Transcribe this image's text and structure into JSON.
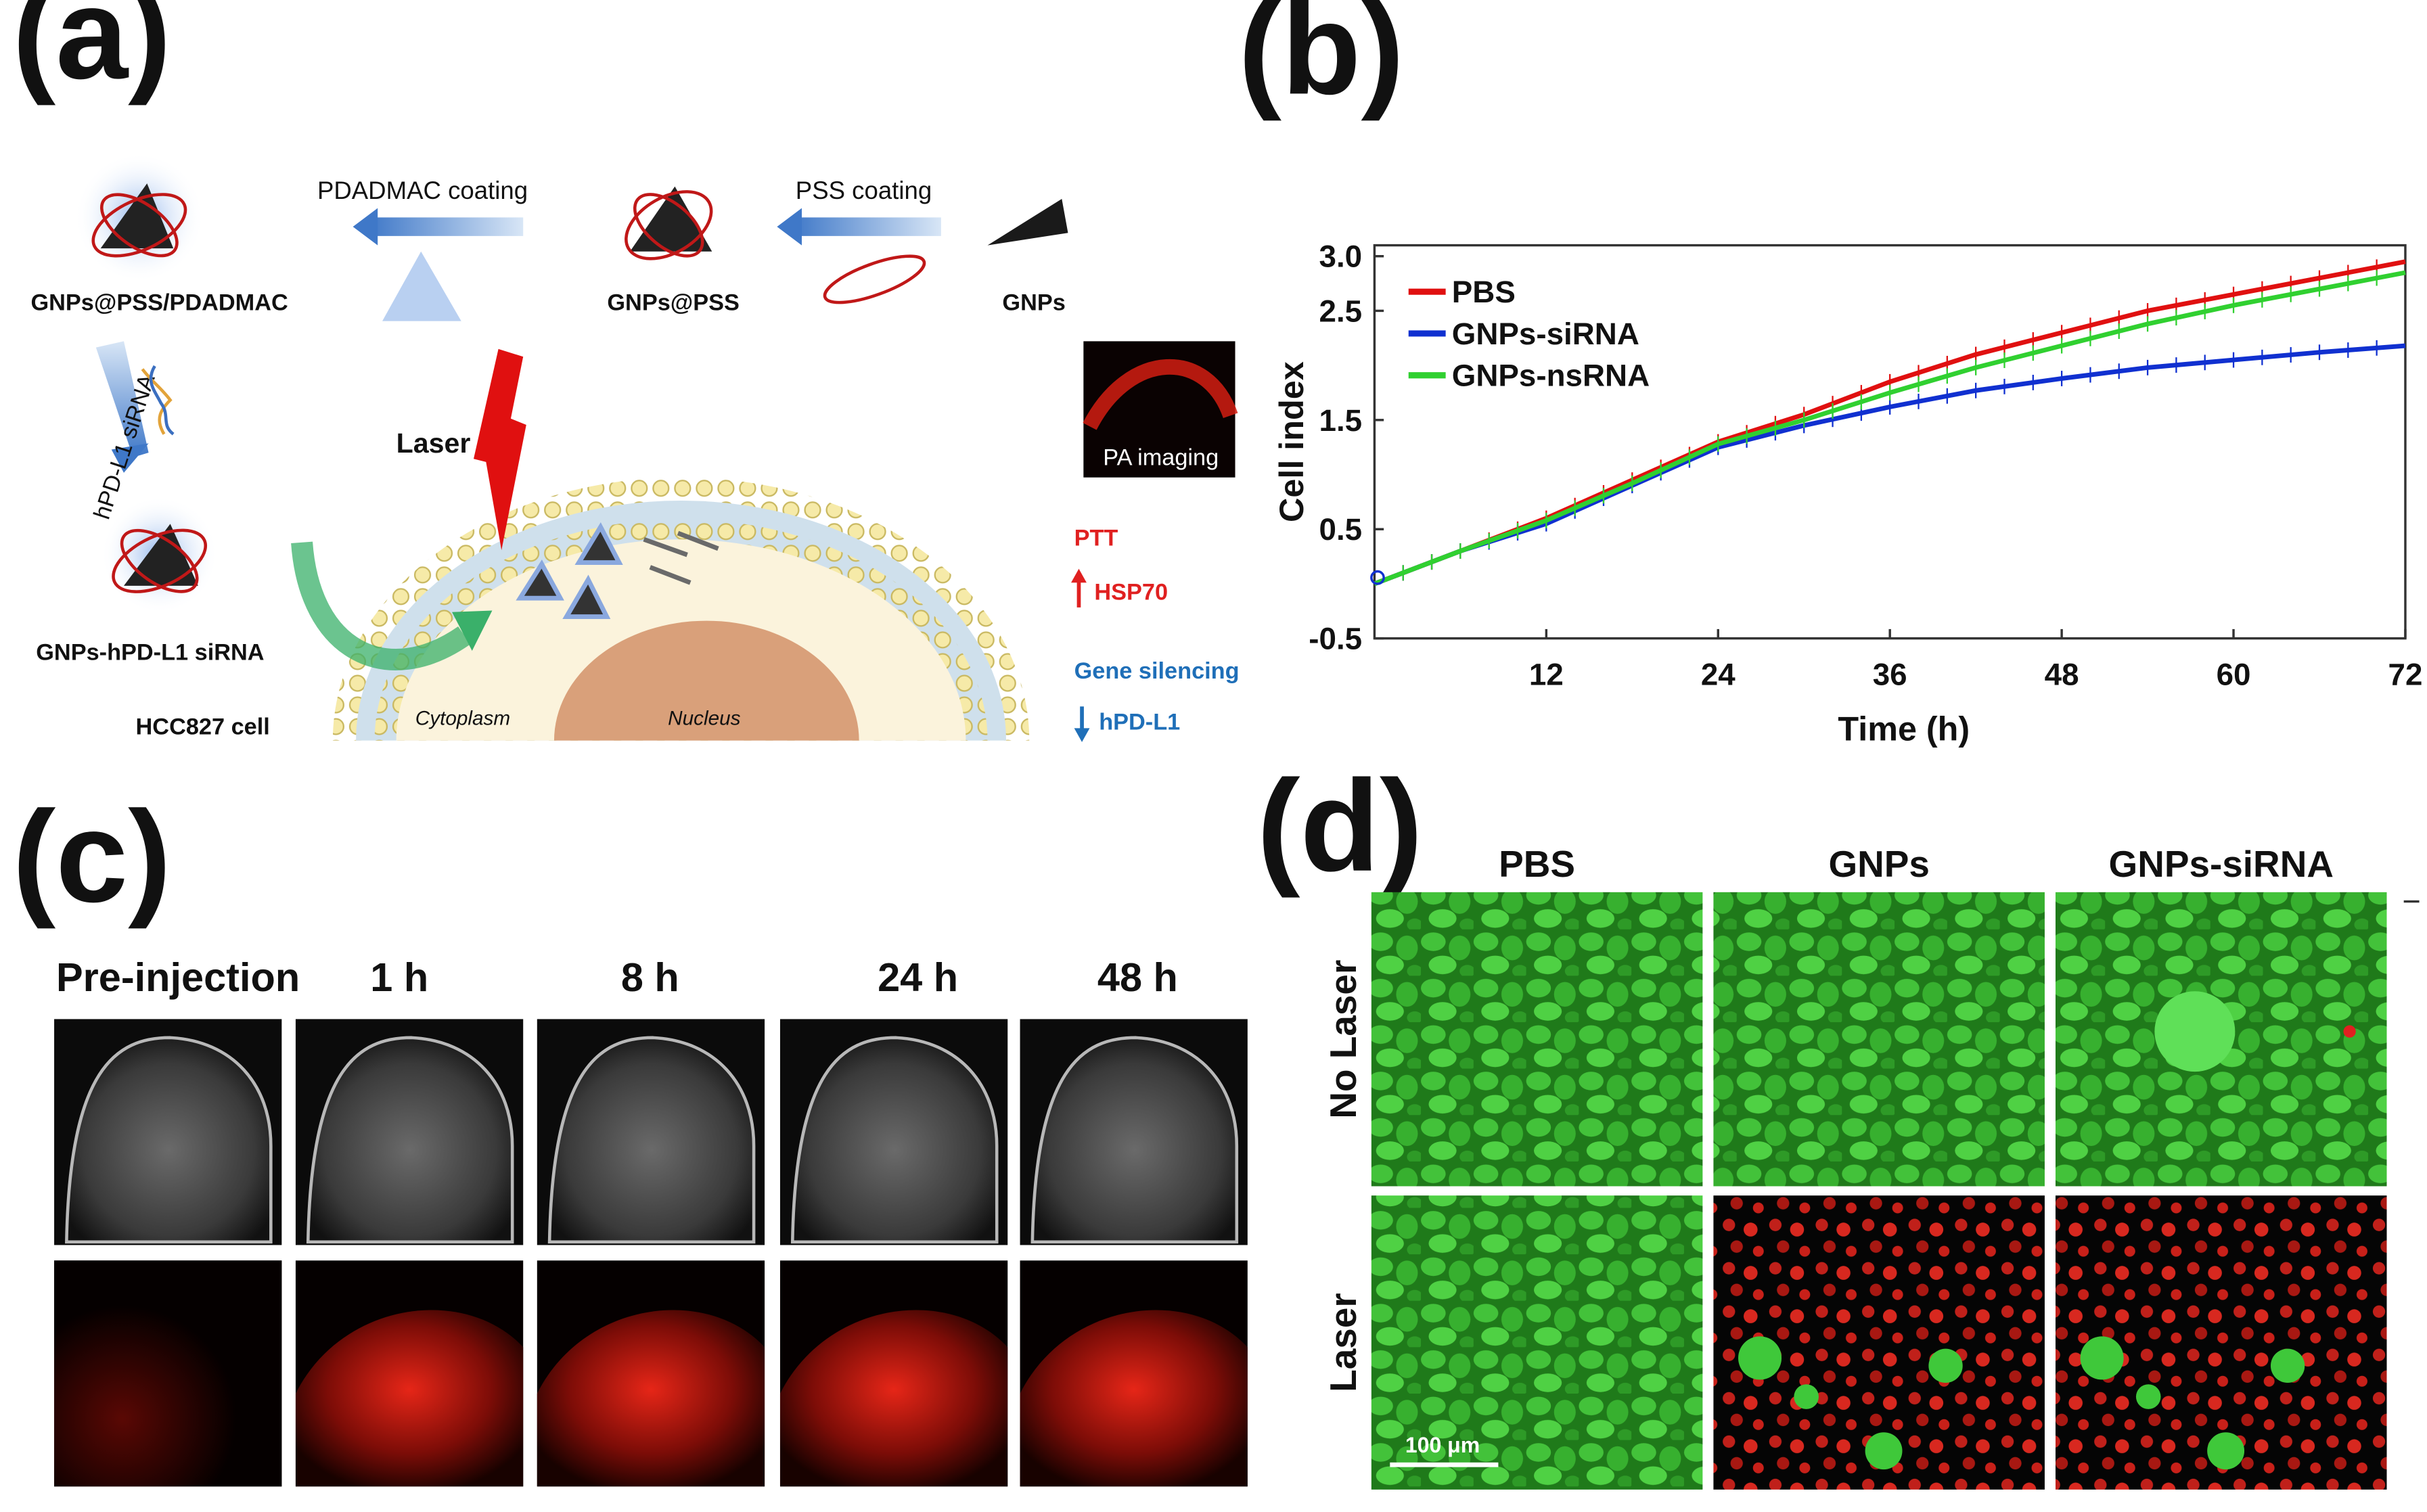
{
  "panels": {
    "a": {
      "label": "(a)",
      "process": {
        "pdadmac_coating": "PDADMAC coating",
        "pss_coating": "PSS coating",
        "gnps": "GNPs",
        "gnps_pss": "GNPs@PSS",
        "gnps_pss_pdadmac": "GNPs@PSS/PDADMAC",
        "sirna_arrow": "hPD-L1 siRNA",
        "gnps_sirna": "GNPs-hPD-L1 siRNA",
        "cell": "HCC827 cell"
      },
      "cell_diagram": {
        "laser": "Laser",
        "cytoplasm": "Cytoplasm",
        "nucleus": "Nucleus",
        "pa_imaging": "PA imaging",
        "ptt": "PTT",
        "hsp70": "HSP70",
        "gene_silencing": "Gene silencing",
        "hpdl1": "hPD-L1"
      },
      "colors": {
        "red": "#e02020",
        "blue": "#1f6fb8",
        "cell_fill": "#fbf3dc",
        "nucleus": "#d9a07a"
      }
    },
    "b": {
      "label": "(b)",
      "chart_data": {
        "type": "line",
        "xlabel": "Time (h)",
        "ylabel": "Cell index",
        "xlim": [
          0,
          72
        ],
        "ylim": [
          -0.5,
          3.1
        ],
        "xticks": [
          12,
          24,
          36,
          48,
          60,
          72
        ],
        "yticks": [
          3.0,
          2.5,
          1.5,
          0.5,
          -0.5
        ],
        "ytick_labels": [
          "3.0",
          "2.5",
          "1.5",
          "0.5",
          "-0.5"
        ],
        "legend_position": "top-left",
        "x": [
          0,
          6,
          12,
          18,
          24,
          30,
          36,
          42,
          48,
          54,
          60,
          66,
          72
        ],
        "series": [
          {
            "name": "PBS",
            "color": "#e01010",
            "values": [
              0.0,
              0.3,
              0.6,
              0.95,
              1.3,
              1.55,
              1.85,
              2.1,
              2.3,
              2.5,
              2.65,
              2.8,
              2.95
            ]
          },
          {
            "name": "GNPs-siRNA",
            "color": "#1030d0",
            "values": [
              0.0,
              0.3,
              0.55,
              0.9,
              1.25,
              1.45,
              1.62,
              1.77,
              1.88,
              1.98,
              2.05,
              2.12,
              2.18
            ]
          },
          {
            "name": "GNPs-nsRNA",
            "color": "#30d030",
            "values": [
              0.0,
              0.3,
              0.58,
              0.92,
              1.28,
              1.5,
              1.75,
              1.98,
              2.18,
              2.38,
              2.55,
              2.7,
              2.85
            ]
          }
        ]
      }
    },
    "c": {
      "label": "(c)",
      "timepoints": [
        "Pre-injection",
        "1 h",
        "8 h",
        "24 h",
        "48 h"
      ]
    },
    "d": {
      "label": "(d)",
      "columns": [
        "PBS",
        "GNPs",
        "GNPs-siRNA"
      ],
      "rows": [
        "No Laser",
        "Laser"
      ],
      "scale_bar": "100 μm"
    }
  }
}
